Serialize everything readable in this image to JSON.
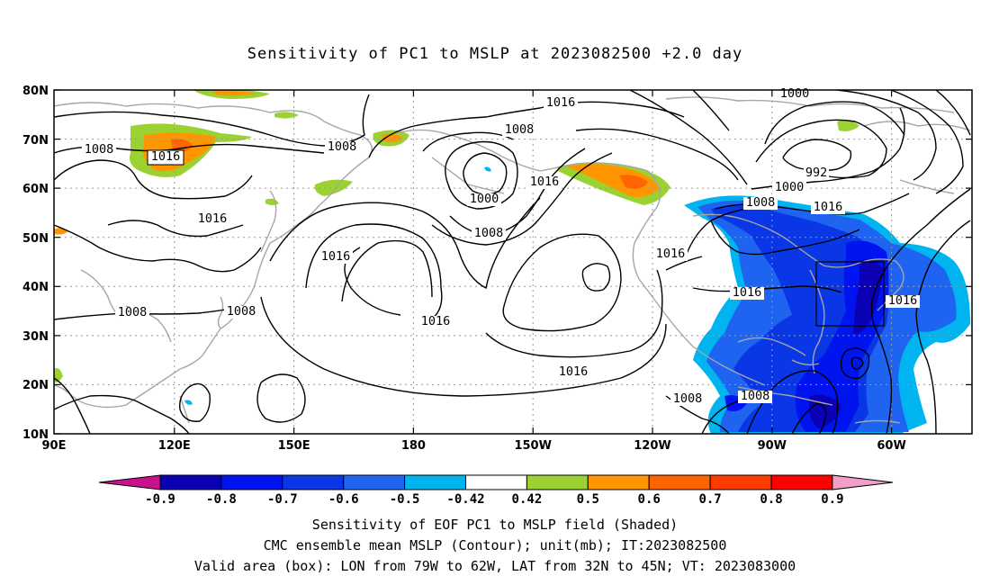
{
  "title": "Sensitivity of PC1 to MSLP at 2023082500 +2.0 day",
  "lat_labels": [
    "80N",
    "70N",
    "60N",
    "50N",
    "40N",
    "30N",
    "20N",
    "10N"
  ],
  "lon_labels": [
    "90E",
    "120E",
    "150E",
    "180",
    "150W",
    "120W",
    "90W",
    "60W"
  ],
  "contour_labels": {
    "c1": "1016",
    "c2": "1000",
    "c3": "1008",
    "c4": "1008",
    "c5": "1016",
    "c6": "1008",
    "c7": "992",
    "c8": "1000",
    "c9": "1016",
    "c10": "1008",
    "c11": "1016",
    "c12": "1000",
    "c13": "1008",
    "c14": "1016",
    "c15": "1016",
    "c16": "1016",
    "c17": "1016",
    "c18": "1016",
    "c19": "1008",
    "c20": "1008",
    "c21": "1016",
    "c22": "1008",
    "c23": "1008"
  },
  "colorbar": {
    "labels": [
      "-0.9",
      "-0.8",
      "-0.7",
      "-0.6",
      "-0.5",
      "-0.42",
      "0.42",
      "0.5",
      "0.6",
      "0.7",
      "0.8",
      "0.9"
    ],
    "colors": [
      "#c8118c",
      "#0a00b4",
      "#0014f0",
      "#0a37e6",
      "#1e64f0",
      "#00b4f0",
      "#ffffff",
      "#9bd232",
      "#ff9600",
      "#ff6400",
      "#ff3c00",
      "#ff0000",
      "#f2a0c8"
    ]
  },
  "valid_box": {
    "lon_from": "79W",
    "lon_to": "62W",
    "lat_from": "32N",
    "lat_to": "45N"
  },
  "caption": {
    "line1": "Sensitivity of EOF PC1 to MSLP field (Shaded)",
    "line2": "CMC ensemble mean MSLP (Contour); unit(mb); IT:2023082500",
    "line3": "Valid area (box): LON from 79W to 62W, LAT from 32N to 45N; VT: 2023083000"
  }
}
